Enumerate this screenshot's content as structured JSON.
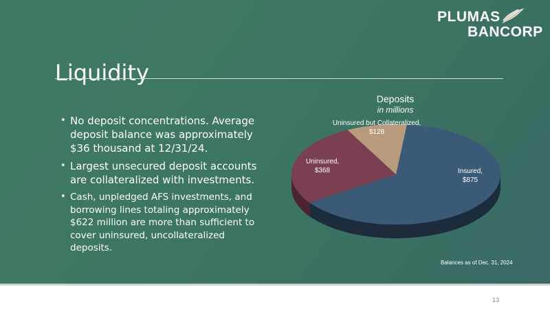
{
  "logo": {
    "line1": "PLUMAS",
    "line2": "BANCORP"
  },
  "title": "Liquidity",
  "bullets": [
    "No deposit concentrations. Average deposit balance was approximately $36 thousand at 12/31/24.",
    "Largest unsecured deposit accounts are collateralized with investments.",
    "Cash, unpledged AFS investments, and borrowing lines totaling approximately $622 million are more than sufficient to cover uninsured, uncollateralized deposits."
  ],
  "chart_data": {
    "type": "pie",
    "title": "Deposits",
    "subtitle": "in millions",
    "three_d": true,
    "categories": [
      "Insured",
      "Uninsured",
      "Uninsured but Collateralized"
    ],
    "values": [
      875,
      368,
      128
    ],
    "value_labels": [
      "$875",
      "$368",
      "$128"
    ],
    "colors": [
      "#3b5a78",
      "#7b3f52",
      "#b89a7c"
    ],
    "side_colors": [
      "#1c2c3c",
      "#4d2434",
      "#6e5a45"
    ],
    "data_labels": [
      {
        "line1": "Insured,",
        "line2": "$875"
      },
      {
        "line1": "Uninsured,",
        "line2": "$368"
      },
      {
        "line1": "Uninsured but Collateralized,",
        "line2": "$128"
      }
    ],
    "note": "Balances as of Dec. 31, 2024"
  },
  "footer": {
    "page_number": "13"
  }
}
